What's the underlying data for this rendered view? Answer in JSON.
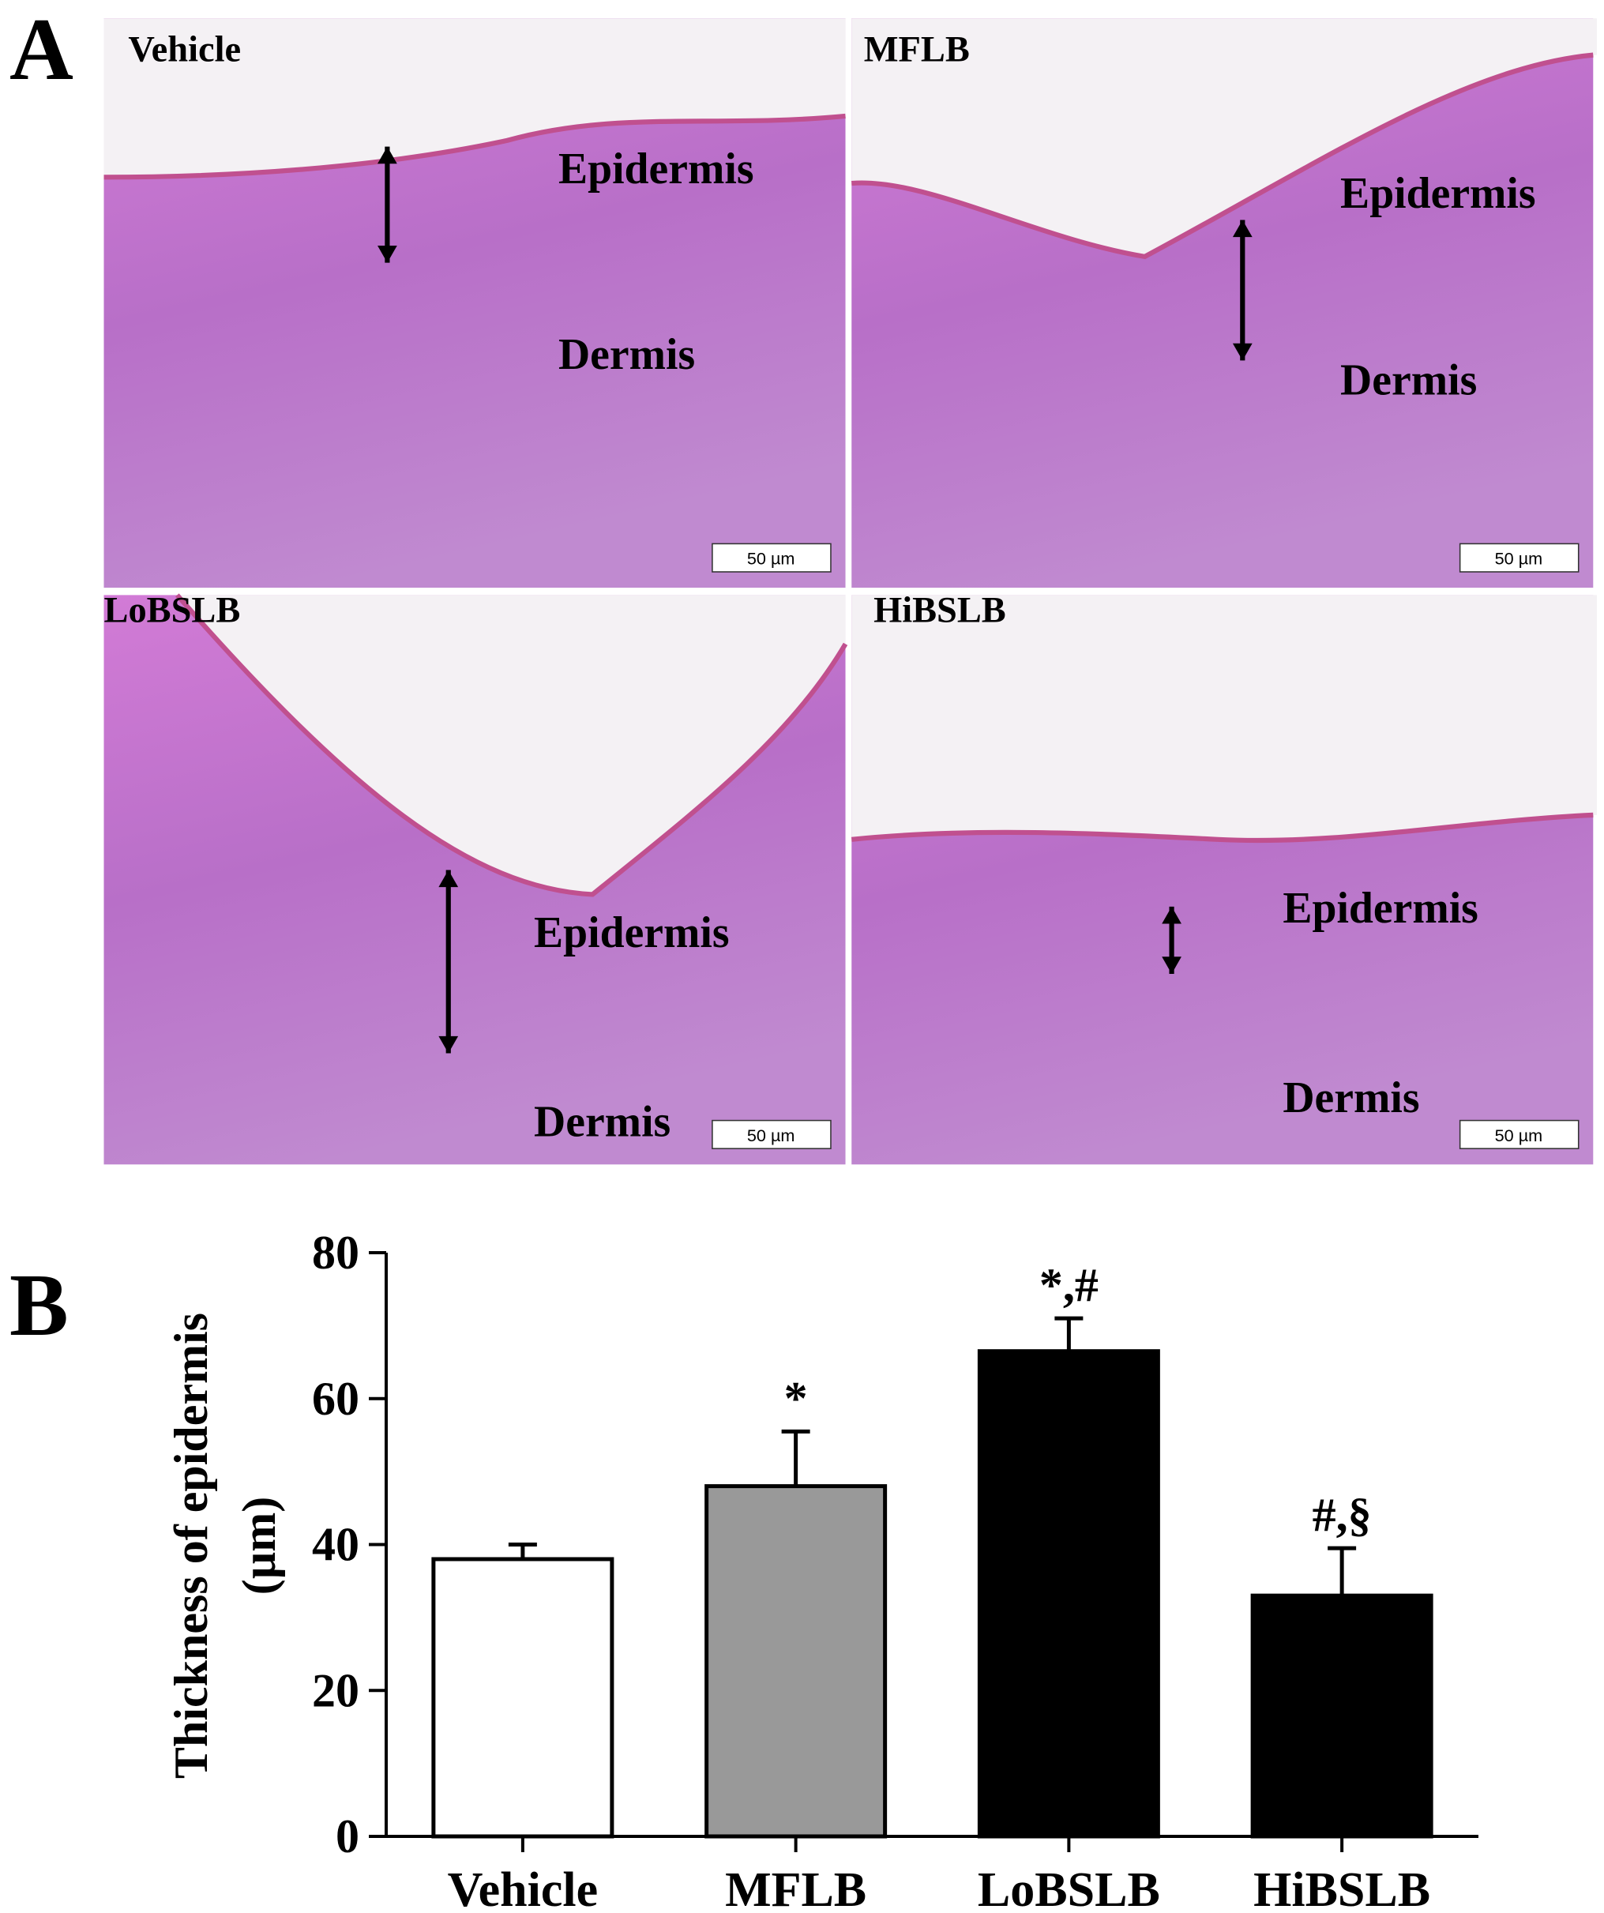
{
  "figure": {
    "panel_labels": [
      "A",
      "B"
    ],
    "micrographs": [
      {
        "title": "Vehicle",
        "labels": [
          "Epidermis",
          "Dermis"
        ],
        "scale_bar": "50 µm"
      },
      {
        "title": "MFLB",
        "labels": [
          "Epidermis",
          "Dermis"
        ],
        "scale_bar": "50 µm"
      },
      {
        "title": "LoBSLB",
        "labels": [
          "Epidermis",
          "Dermis"
        ],
        "scale_bar": "50 µm"
      },
      {
        "title": "HiBSLB",
        "labels": [
          "Epidermis",
          "Dermis"
        ],
        "scale_bar": "50 µm"
      }
    ]
  },
  "chart_data": {
    "type": "bar",
    "y_label": [
      "Thickness of epidermis",
      "(µm)"
    ],
    "categories": [
      "Vehicle",
      "MFLB",
      "LoBSLB",
      "HiBSLB"
    ],
    "values": [
      38,
      48,
      66.5,
      33
    ],
    "errors": [
      2,
      7.5,
      4.5,
      6.5
    ],
    "annotations": [
      null,
      "*",
      "*,#",
      "#,§"
    ],
    "colors": [
      "#ffffff",
      "#999999",
      "#000000",
      "#000000"
    ],
    "ylim": [
      0,
      80
    ],
    "yticks": [
      0,
      20,
      40,
      60,
      80
    ]
  }
}
